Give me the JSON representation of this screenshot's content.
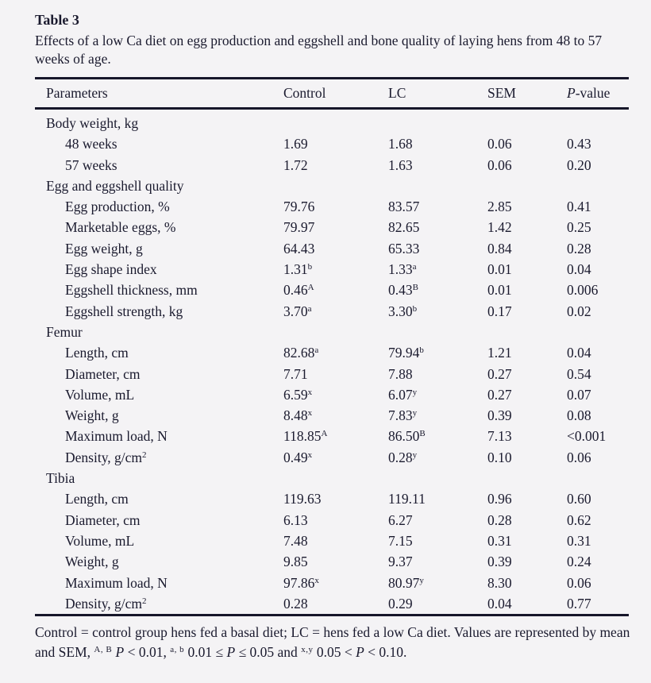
{
  "table3": {
    "label": "Table 3",
    "caption": "Effects of a low Ca diet on egg production and eggshell and bone quality of laying hens from 48 to 57 weeks of age.",
    "columns": [
      {
        "segments": [
          {
            "t": "Parameters"
          }
        ]
      },
      {
        "segments": [
          {
            "t": "Control"
          }
        ]
      },
      {
        "segments": [
          {
            "t": "LC"
          }
        ]
      },
      {
        "segments": [
          {
            "t": "SEM"
          }
        ]
      },
      {
        "segments": [
          {
            "t": "P",
            "i": true
          },
          {
            "t": "-value"
          }
        ]
      }
    ],
    "sections": [
      {
        "title": "Body weight, kg",
        "rows": [
          {
            "parameter": "48 weeks",
            "control": {
              "v": "1.69",
              "s": ""
            },
            "lc": {
              "v": "1.68",
              "s": ""
            },
            "sem": "0.06",
            "p": "0.43"
          },
          {
            "parameter": "57 weeks",
            "control": {
              "v": "1.72",
              "s": ""
            },
            "lc": {
              "v": "1.63",
              "s": ""
            },
            "sem": "0.06",
            "p": "0.20"
          }
        ]
      },
      {
        "title": "Egg and eggshell quality",
        "rows": [
          {
            "parameter": "Egg production, %",
            "control": {
              "v": "79.76",
              "s": ""
            },
            "lc": {
              "v": "83.57",
              "s": ""
            },
            "sem": "2.85",
            "p": "0.41"
          },
          {
            "parameter": "Marketable eggs, %",
            "control": {
              "v": "79.97",
              "s": ""
            },
            "lc": {
              "v": "82.65",
              "s": ""
            },
            "sem": "1.42",
            "p": "0.25"
          },
          {
            "parameter": "Egg weight, g",
            "control": {
              "v": "64.43",
              "s": ""
            },
            "lc": {
              "v": "65.33",
              "s": ""
            },
            "sem": "0.84",
            "p": "0.28"
          },
          {
            "parameter": "Egg shape index",
            "control": {
              "v": "1.31",
              "s": "b"
            },
            "lc": {
              "v": "1.33",
              "s": "a"
            },
            "sem": "0.01",
            "p": "0.04"
          },
          {
            "parameter": "Eggshell thickness, mm",
            "control": {
              "v": "0.46",
              "s": "A"
            },
            "lc": {
              "v": "0.43",
              "s": "B"
            },
            "sem": "0.01",
            "p": "0.006"
          },
          {
            "parameter": "Eggshell strength, kg",
            "control": {
              "v": "3.70",
              "s": "a"
            },
            "lc": {
              "v": "3.30",
              "s": "b"
            },
            "sem": "0.17",
            "p": "0.02"
          }
        ]
      },
      {
        "title": "Femur",
        "rows": [
          {
            "parameter": "Length, cm",
            "control": {
              "v": "82.68",
              "s": "a"
            },
            "lc": {
              "v": "79.94",
              "s": "b"
            },
            "sem": "1.21",
            "p": "0.04"
          },
          {
            "parameter": "Diameter, cm",
            "control": {
              "v": "7.71",
              "s": ""
            },
            "lc": {
              "v": "7.88",
              "s": ""
            },
            "sem": "0.27",
            "p": "0.54"
          },
          {
            "parameter": "Volume, mL",
            "control": {
              "v": "6.59",
              "s": "x"
            },
            "lc": {
              "v": "6.07",
              "s": "y"
            },
            "sem": "0.27",
            "p": "0.07"
          },
          {
            "parameter": "Weight, g",
            "control": {
              "v": "8.48",
              "s": "x"
            },
            "lc": {
              "v": "7.83",
              "s": "y"
            },
            "sem": "0.39",
            "p": "0.08"
          },
          {
            "parameter": "Maximum load, N",
            "control": {
              "v": "118.85",
              "s": "A"
            },
            "lc": {
              "v": "86.50",
              "s": "B"
            },
            "sem": "7.13",
            "p": "<0.001"
          },
          {
            "parameter": "Density, g/cm",
            "parameter_sup": "2",
            "control": {
              "v": "0.49",
              "s": "x"
            },
            "lc": {
              "v": "0.28",
              "s": "y"
            },
            "sem": "0.10",
            "p": "0.06"
          }
        ]
      },
      {
        "title": "Tibia",
        "rows": [
          {
            "parameter": "Length, cm",
            "control": {
              "v": "119.63",
              "s": ""
            },
            "lc": {
              "v": "119.11",
              "s": ""
            },
            "sem": "0.96",
            "p": "0.60"
          },
          {
            "parameter": "Diameter, cm",
            "control": {
              "v": "6.13",
              "s": ""
            },
            "lc": {
              "v": "6.27",
              "s": ""
            },
            "sem": "0.28",
            "p": "0.62"
          },
          {
            "parameter": "Volume, mL",
            "control": {
              "v": "7.48",
              "s": ""
            },
            "lc": {
              "v": "7.15",
              "s": ""
            },
            "sem": "0.31",
            "p": "0.31"
          },
          {
            "parameter": "Weight, g",
            "control": {
              "v": "9.85",
              "s": ""
            },
            "lc": {
              "v": "9.37",
              "s": ""
            },
            "sem": "0.39",
            "p": "0.24"
          },
          {
            "parameter": "Maximum load, N",
            "control": {
              "v": "97.86",
              "s": "x"
            },
            "lc": {
              "v": "80.97",
              "s": "y"
            },
            "sem": "8.30",
            "p": "0.06"
          },
          {
            "parameter": "Density, g/cm",
            "parameter_sup": "2",
            "control": {
              "v": "0.28",
              "s": ""
            },
            "lc": {
              "v": "0.29",
              "s": ""
            },
            "sem": "0.04",
            "p": "0.77"
          }
        ]
      }
    ],
    "footnotes": [
      {
        "segments": [
          {
            "t": "Control = control group hens fed a basal diet; LC = hens fed a low Ca diet. "
          }
        ]
      },
      {
        "segments": [
          {
            "t": "Values are represented by mean and SEM, "
          },
          {
            "t": "A, B",
            "sup": true
          },
          {
            "t": " "
          },
          {
            "t": "P",
            "i": true
          },
          {
            "t": " < 0.01, "
          },
          {
            "t": "a, b",
            "sup": true
          },
          {
            "t": " 0.01 ≤ "
          },
          {
            "t": "P",
            "i": true
          },
          {
            "t": " ≤ 0.05 and "
          },
          {
            "t": "x,y",
            "sup": true
          },
          {
            "t": " 0.05 < "
          },
          {
            "t": "P",
            "i": true
          },
          {
            "t": " < 0.10."
          }
        ]
      }
    ],
    "colors": {
      "background": "#f4f3f5",
      "text": "#1a1a2e",
      "rule": "#16162a"
    }
  }
}
